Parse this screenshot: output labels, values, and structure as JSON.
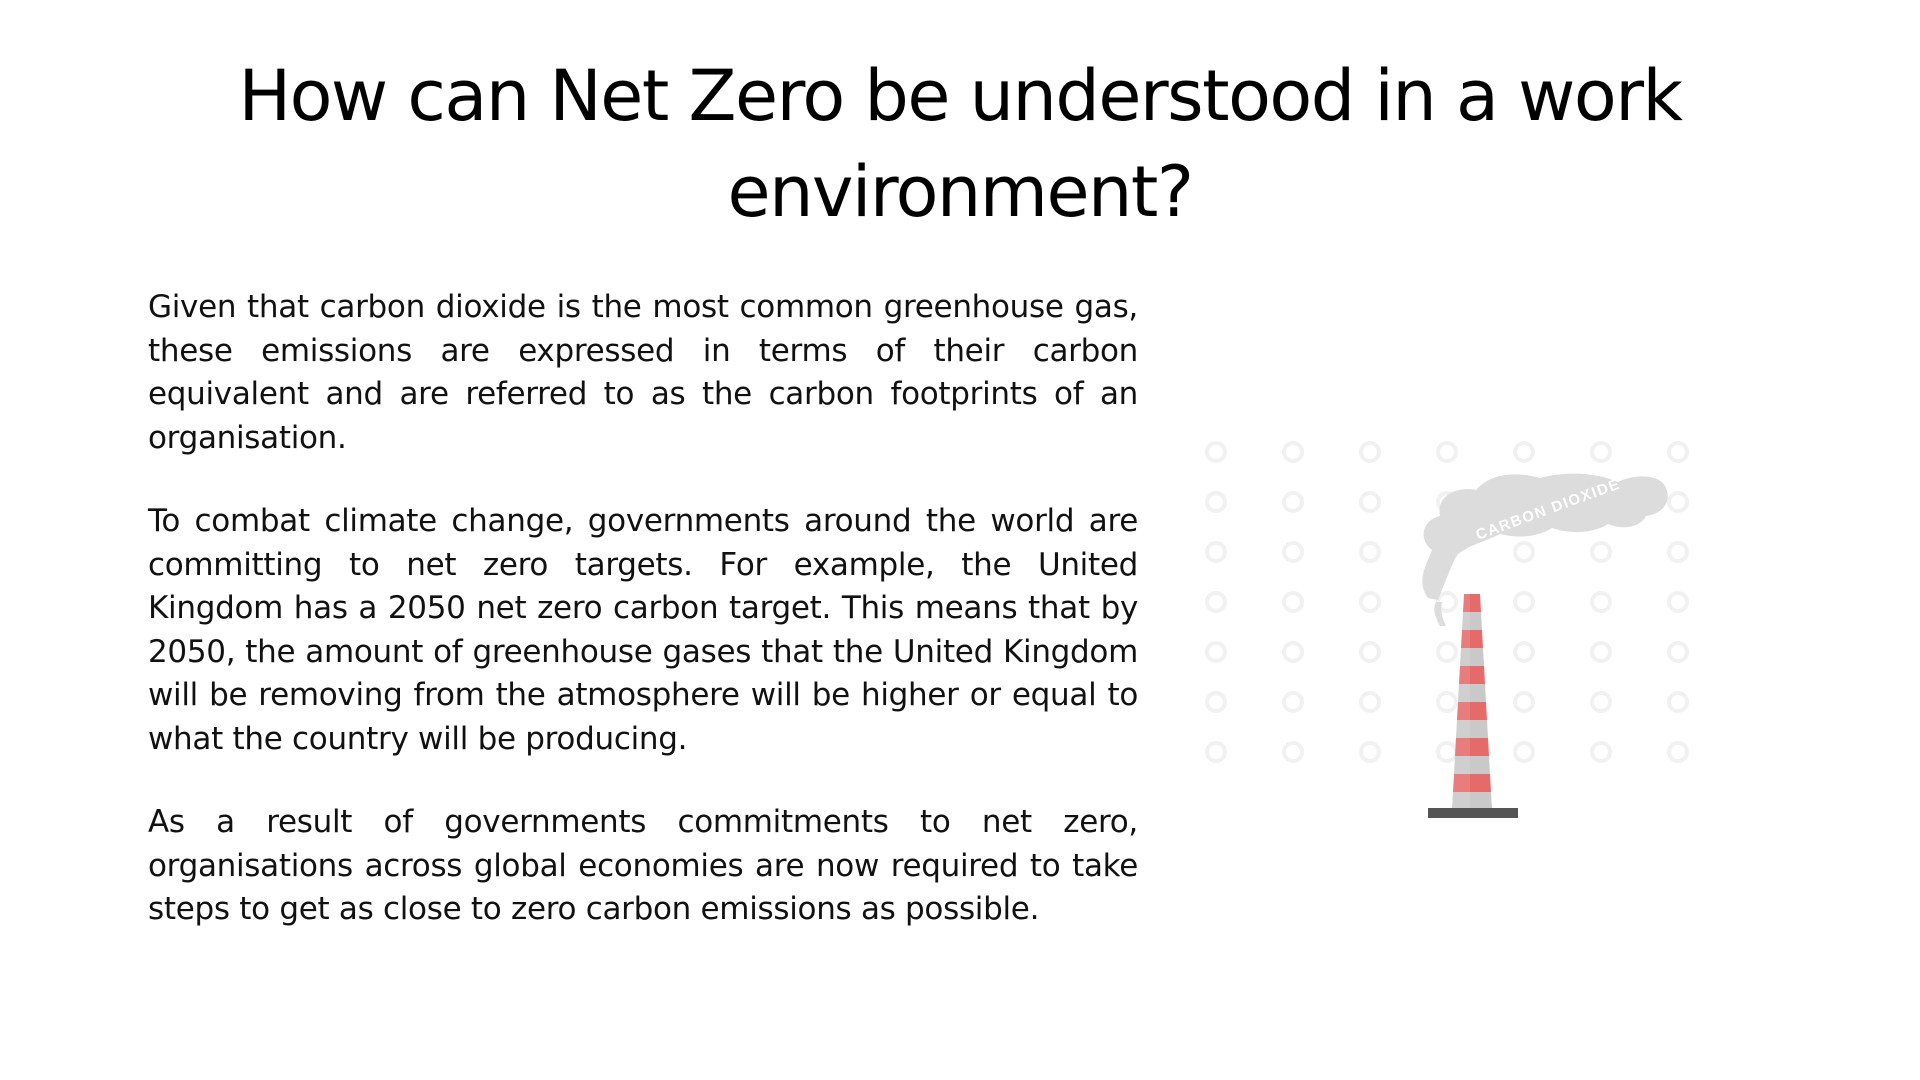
{
  "slide": {
    "title": "How can Net Zero be understood in a work environment?",
    "paragraphs": [
      "Given that carbon dioxide is the most common greenhouse gas, these emissions are expressed in terms of their carbon equivalent and are referred to as the carbon footprints of an organisation.",
      "To combat climate change, governments around the world are committing to net zero targets. For example, the United Kingdom has a 2050 net zero carbon target. This means that by 2050, the amount of greenhouse gases that the United Kingdom will be removing from the atmosphere will be higher or equal to what the country will be producing.",
      "As a result of governments commitments to net zero, organisations across global economies are now required to take steps to get as close to zero carbon emissions as possible."
    ]
  },
  "illustration": {
    "smoke_label": "CARBON DIOXIDE",
    "icon": "smokestack-icon",
    "colors": {
      "stripe_red": "#e56b6b",
      "stripe_gray": "#c9c9c9",
      "base": "#555555",
      "smoke": "#dcdcdc",
      "watermark": "#f1f1f1"
    }
  }
}
